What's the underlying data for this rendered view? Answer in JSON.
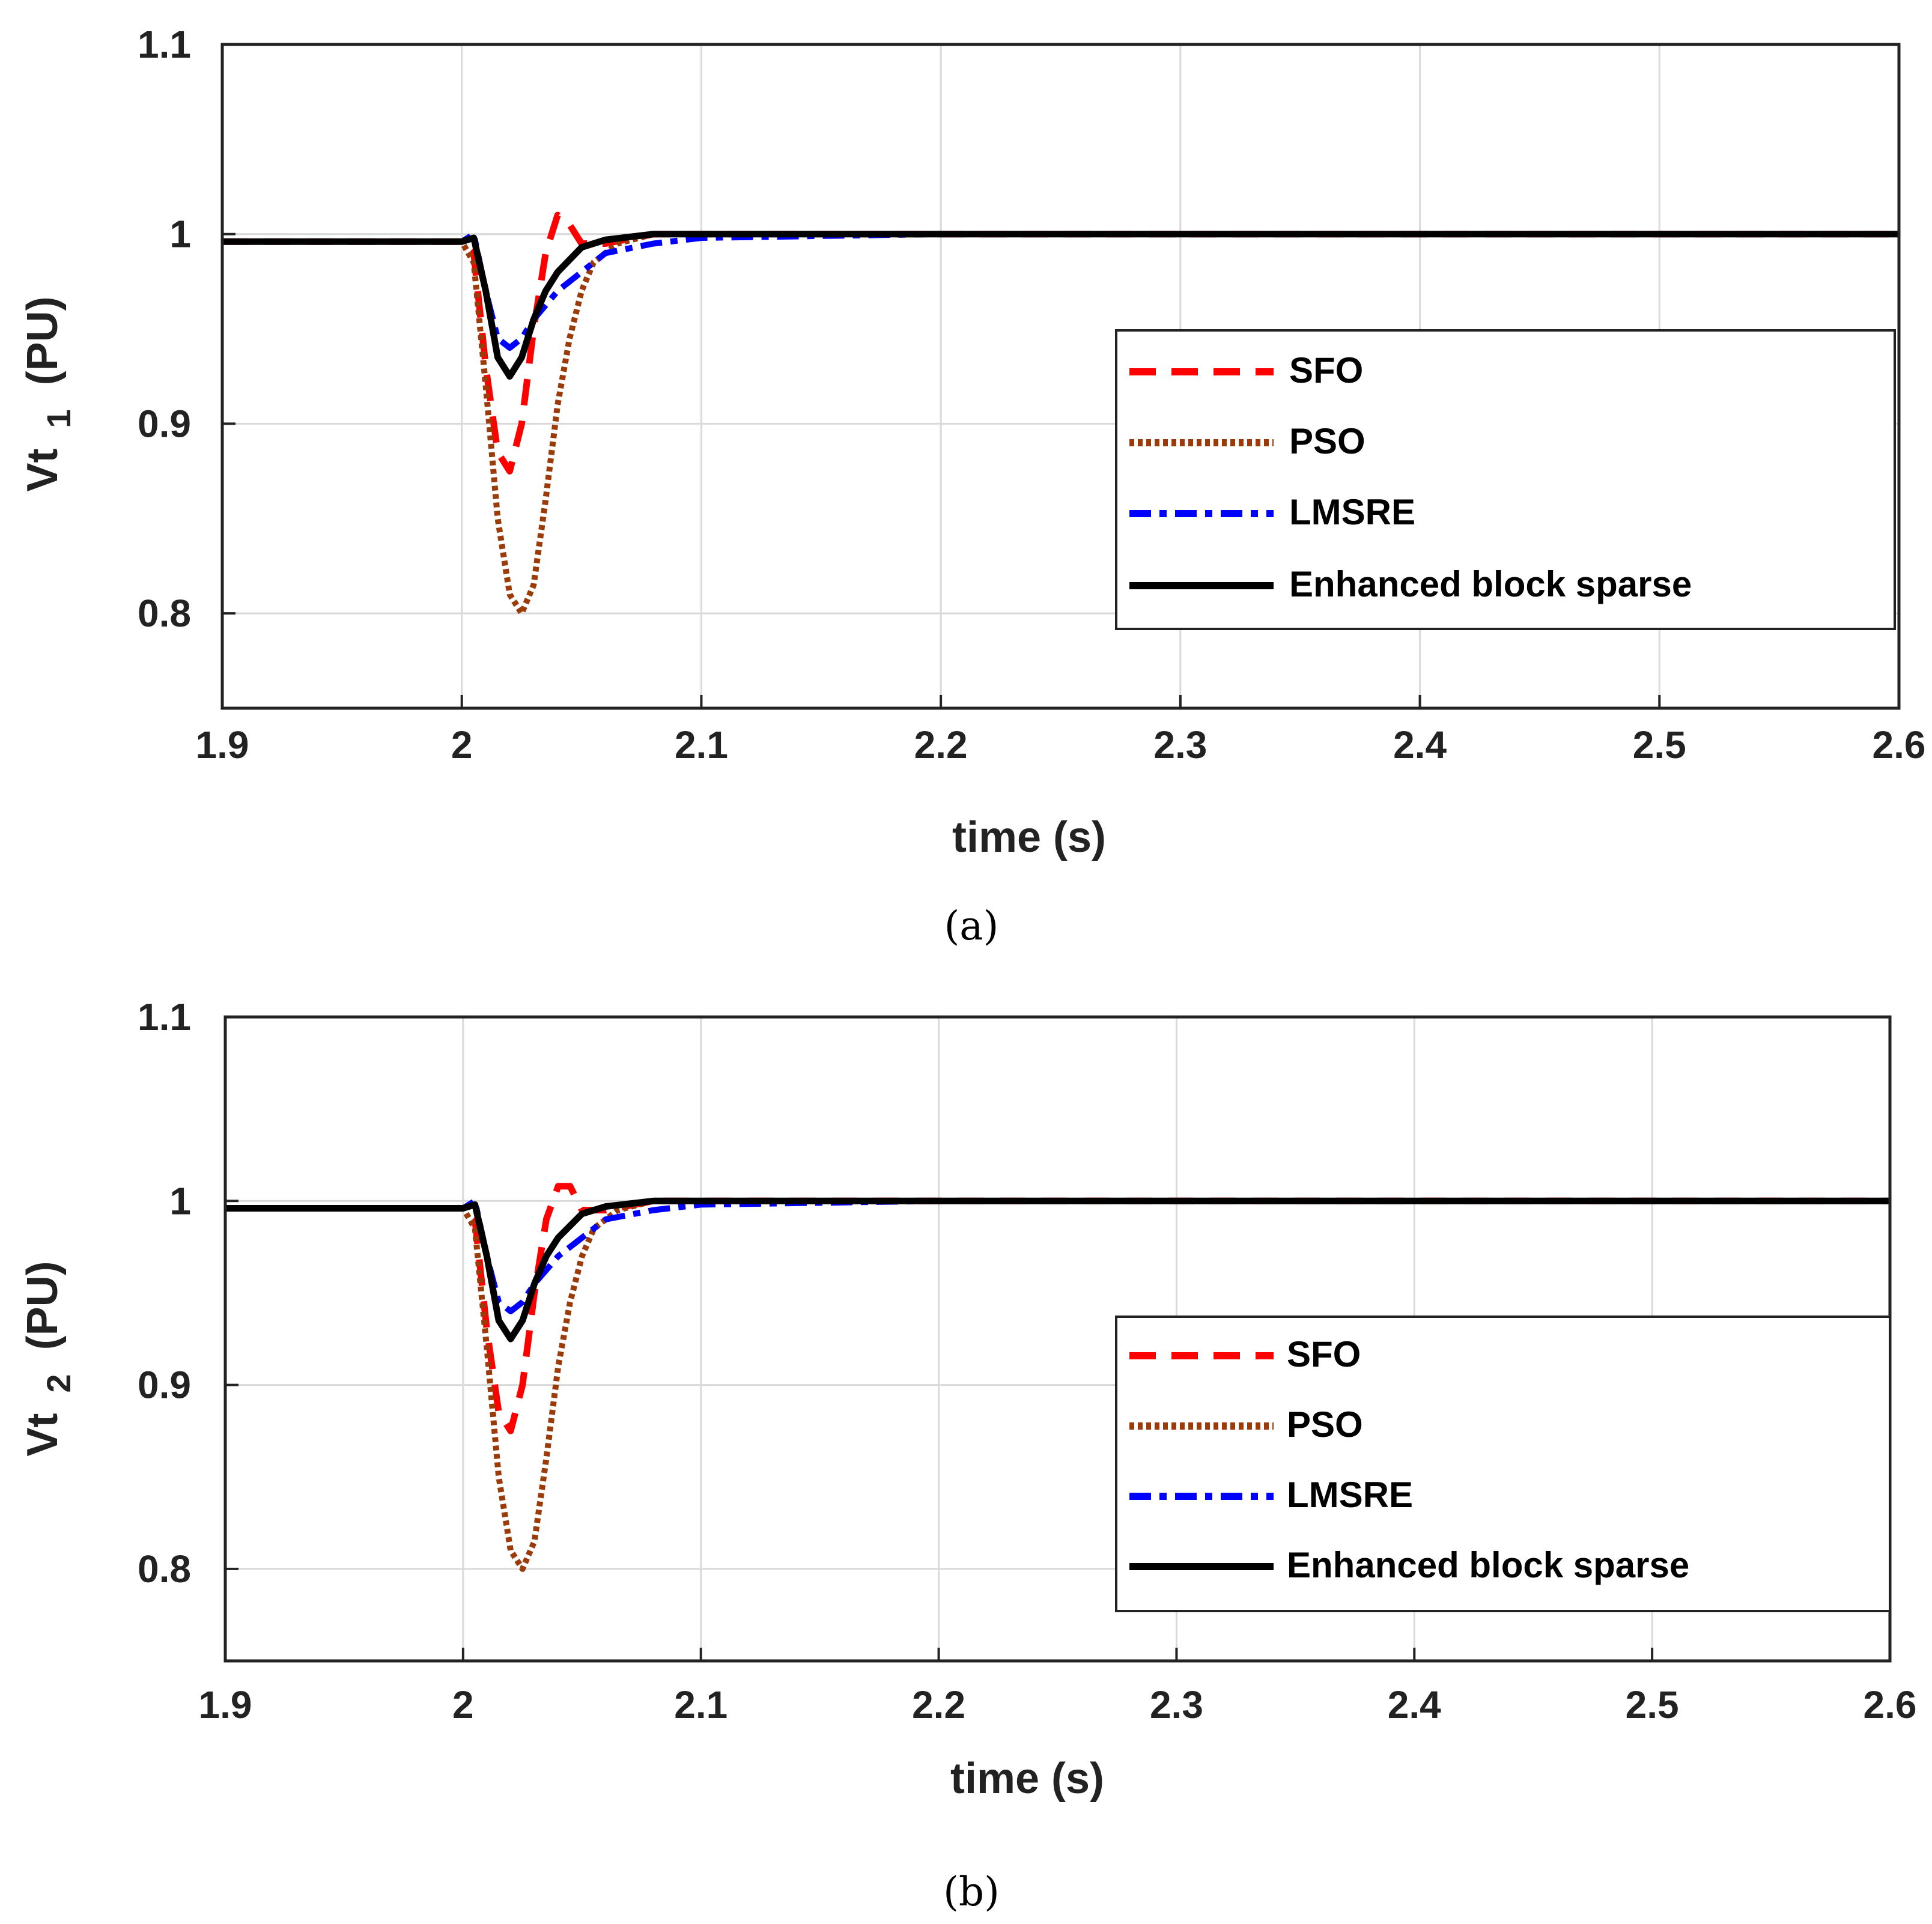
{
  "chart_data": [
    {
      "type": "line",
      "panel_label": "(a)",
      "xlabel": "time (s)",
      "ylabel_main": "Vt",
      "ylabel_sub": "1",
      "ylabel_unit": "(PU)",
      "xlim": [
        1.9,
        2.6
      ],
      "ylim": [
        0.75,
        1.1
      ],
      "xticks": [
        1.9,
        2.0,
        2.1,
        2.2,
        2.3,
        2.4,
        2.5,
        2.6
      ],
      "xtick_labels": [
        "1.9",
        "2",
        "2.1",
        "2.2",
        "2.3",
        "2.4",
        "2.5",
        "2.6"
      ],
      "yticks": [
        0.8,
        0.9,
        1.0,
        1.1
      ],
      "ytick_labels": [
        "0.8",
        "0.9",
        "1",
        "1.1"
      ],
      "grid": true,
      "legend_position": "lower-right",
      "series": [
        {
          "name": "SFO",
          "color": "#ff0000",
          "style": "dashed",
          "x": [
            1.9,
            2.0,
            2.005,
            2.01,
            2.015,
            2.02,
            2.025,
            2.03,
            2.035,
            2.04,
            2.045,
            2.05,
            2.06,
            2.08,
            2.1,
            2.2,
            2.6
          ],
          "y": [
            0.996,
            0.996,
            0.99,
            0.93,
            0.885,
            0.875,
            0.9,
            0.95,
            0.99,
            1.01,
            1.005,
            0.995,
            0.995,
            1.0,
            1.0,
            1.0,
            1.0
          ]
        },
        {
          "name": "PSO",
          "color": "#9b3b0a",
          "style": "dotted",
          "x": [
            1.9,
            2.0,
            2.005,
            2.01,
            2.015,
            2.02,
            2.025,
            2.03,
            2.035,
            2.04,
            2.045,
            2.05,
            2.055,
            2.065,
            2.08,
            2.1,
            2.2,
            2.6
          ],
          "y": [
            0.996,
            0.996,
            0.985,
            0.92,
            0.85,
            0.81,
            0.8,
            0.815,
            0.86,
            0.91,
            0.945,
            0.97,
            0.985,
            0.995,
            1.0,
            1.0,
            1.0,
            1.0
          ]
        },
        {
          "name": "LMSRE",
          "color": "#0000ff",
          "style": "dashdot",
          "x": [
            1.9,
            2.0,
            2.005,
            2.01,
            2.015,
            2.02,
            2.025,
            2.03,
            2.04,
            2.05,
            2.06,
            2.08,
            2.1,
            2.2,
            2.6
          ],
          "y": [
            0.996,
            0.996,
            1.0,
            0.97,
            0.945,
            0.94,
            0.945,
            0.955,
            0.97,
            0.98,
            0.99,
            0.995,
            0.998,
            1.0,
            1.0
          ]
        },
        {
          "name": "Enhanced block sparse",
          "color": "#000000",
          "style": "solid",
          "x": [
            1.9,
            2.0,
            2.005,
            2.01,
            2.015,
            2.02,
            2.025,
            2.03,
            2.035,
            2.04,
            2.05,
            2.06,
            2.08,
            2.1,
            2.2,
            2.6
          ],
          "y": [
            0.996,
            0.996,
            0.998,
            0.97,
            0.935,
            0.925,
            0.935,
            0.955,
            0.97,
            0.98,
            0.993,
            0.997,
            1.0,
            1.0,
            1.0,
            1.0
          ]
        }
      ]
    },
    {
      "type": "line",
      "panel_label": "(b)",
      "xlabel": "time (s)",
      "ylabel_main": "Vt",
      "ylabel_sub": "2",
      "ylabel_unit": "(PU)",
      "xlim": [
        1.9,
        2.6
      ],
      "ylim": [
        0.75,
        1.1
      ],
      "xticks": [
        1.9,
        2.0,
        2.1,
        2.2,
        2.3,
        2.4,
        2.5,
        2.6
      ],
      "xtick_labels": [
        "1.9",
        "2",
        "2.1",
        "2.2",
        "2.3",
        "2.4",
        "2.5",
        "2.6"
      ],
      "yticks": [
        0.8,
        0.9,
        1.0,
        1.1
      ],
      "ytick_labels": [
        "0.8",
        "0.9",
        "1",
        "1.1"
      ],
      "grid": true,
      "legend_position": "lower-right",
      "series": [
        {
          "name": "SFO",
          "color": "#ff0000",
          "style": "dashed",
          "x": [
            1.9,
            2.0,
            2.005,
            2.01,
            2.015,
            2.02,
            2.025,
            2.03,
            2.035,
            2.04,
            2.045,
            2.05,
            2.06,
            2.08,
            2.1,
            2.2,
            2.6
          ],
          "y": [
            0.996,
            0.996,
            0.99,
            0.93,
            0.885,
            0.875,
            0.9,
            0.95,
            0.99,
            1.008,
            1.008,
            0.995,
            0.995,
            1.0,
            1.0,
            1.0,
            1.0
          ]
        },
        {
          "name": "PSO",
          "color": "#9b3b0a",
          "style": "dotted",
          "x": [
            1.9,
            2.0,
            2.005,
            2.01,
            2.015,
            2.02,
            2.025,
            2.03,
            2.035,
            2.04,
            2.045,
            2.05,
            2.055,
            2.065,
            2.08,
            2.1,
            2.2,
            2.6
          ],
          "y": [
            0.996,
            0.996,
            0.985,
            0.92,
            0.85,
            0.81,
            0.8,
            0.815,
            0.86,
            0.91,
            0.945,
            0.97,
            0.985,
            0.995,
            1.0,
            1.0,
            1.0,
            1.0
          ]
        },
        {
          "name": "LMSRE",
          "color": "#0000ff",
          "style": "dashdot",
          "x": [
            1.9,
            2.0,
            2.005,
            2.01,
            2.015,
            2.02,
            2.025,
            2.03,
            2.04,
            2.05,
            2.06,
            2.08,
            2.1,
            2.2,
            2.6
          ],
          "y": [
            0.996,
            0.996,
            1.0,
            0.97,
            0.945,
            0.94,
            0.945,
            0.955,
            0.97,
            0.98,
            0.99,
            0.995,
            0.998,
            1.0,
            1.0
          ]
        },
        {
          "name": "Enhanced block sparse",
          "color": "#000000",
          "style": "solid",
          "x": [
            1.9,
            2.0,
            2.005,
            2.01,
            2.015,
            2.02,
            2.025,
            2.03,
            2.035,
            2.04,
            2.05,
            2.06,
            2.08,
            2.1,
            2.2,
            2.6
          ],
          "y": [
            0.996,
            0.996,
            0.998,
            0.97,
            0.935,
            0.925,
            0.935,
            0.955,
            0.97,
            0.98,
            0.993,
            0.997,
            1.0,
            1.0,
            1.0,
            1.0
          ]
        }
      ]
    }
  ]
}
